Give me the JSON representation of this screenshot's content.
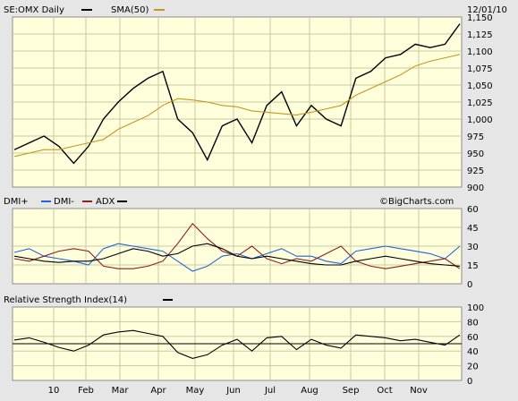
{
  "header": {
    "symbol": "SE:OMX Daily",
    "sma_label": "SMA(50)",
    "date": "12/01/10"
  },
  "watermark": "©BigCharts.com",
  "colors": {
    "panel_bg": "#ffffdc",
    "grid": "#c8c8a0",
    "frame_bg": "#e6e6e6",
    "price": "#000000",
    "sma": "#c8961e",
    "dmi_plus": "#1e64dc",
    "dmi_minus": "#8c1e1e",
    "adx": "#000000",
    "rsi": "#000000"
  },
  "x_axis": {
    "labels": [
      "10",
      "Feb",
      "Mar",
      "Apr",
      "May",
      "Jun",
      "Jul",
      "Aug",
      "Sep",
      "Oct",
      "Nov"
    ]
  },
  "chart_data": [
    {
      "type": "line",
      "title": "SE:OMX Daily",
      "ylim": [
        900,
        1150
      ],
      "y_ticks": [
        "1,150",
        "1,125",
        "1,100",
        "1,075",
        "1,050",
        "1,025",
        "1,000",
        "975",
        "950",
        "925",
        "900"
      ],
      "grid": true,
      "x": [
        "2010-01-04",
        "2010-01-15",
        "2010-01-27",
        "2010-02-08",
        "2010-02-19",
        "2010-03-03",
        "2010-03-15",
        "2010-03-26",
        "2010-04-07",
        "2010-04-19",
        "2010-04-30",
        "2010-05-07",
        "2010-05-14",
        "2010-05-21",
        "2010-06-02",
        "2010-06-14",
        "2010-06-25",
        "2010-07-07",
        "2010-07-19",
        "2010-07-30",
        "2010-08-11",
        "2010-08-23",
        "2010-09-03",
        "2010-09-15",
        "2010-09-27",
        "2010-10-08",
        "2010-10-20",
        "2010-11-01",
        "2010-11-12",
        "2010-11-24",
        "2010-12-01"
      ],
      "series": [
        {
          "name": "SE:OMX Daily",
          "values": [
            955,
            965,
            975,
            960,
            935,
            960,
            1000,
            1025,
            1045,
            1060,
            1070,
            1000,
            980,
            940,
            990,
            1000,
            965,
            1020,
            1040,
            990,
            1020,
            1000,
            990,
            1060,
            1070,
            1090,
            1095,
            1110,
            1105,
            1110,
            1140
          ]
        },
        {
          "name": "SMA(50)",
          "values": [
            945,
            950,
            955,
            955,
            960,
            965,
            970,
            985,
            995,
            1005,
            1020,
            1030,
            1028,
            1025,
            1020,
            1018,
            1012,
            1010,
            1008,
            1006,
            1010,
            1015,
            1020,
            1035,
            1045,
            1055,
            1065,
            1078,
            1085,
            1090,
            1095
          ]
        }
      ]
    },
    {
      "type": "line",
      "title": "DMI+ DMI- ADX",
      "ylim": [
        0,
        60
      ],
      "y_ticks": [
        "60",
        "45",
        "30",
        "15",
        "0"
      ],
      "grid": true,
      "series": [
        {
          "name": "DMI+",
          "values": [
            25,
            28,
            22,
            20,
            18,
            15,
            28,
            32,
            30,
            28,
            26,
            18,
            10,
            14,
            22,
            24,
            20,
            24,
            28,
            22,
            22,
            18,
            16,
            26,
            28,
            30,
            28,
            26,
            24,
            20,
            30
          ]
        },
        {
          "name": "DMI-",
          "values": [
            20,
            18,
            22,
            26,
            28,
            26,
            14,
            12,
            12,
            14,
            18,
            32,
            48,
            36,
            26,
            22,
            30,
            20,
            16,
            20,
            18,
            24,
            30,
            18,
            14,
            12,
            14,
            16,
            18,
            20,
            12
          ]
        },
        {
          "name": "ADX",
          "values": [
            22,
            20,
            18,
            17,
            18,
            18,
            20,
            24,
            28,
            26,
            22,
            24,
            30,
            32,
            28,
            22,
            20,
            22,
            20,
            18,
            16,
            15,
            15,
            18,
            20,
            22,
            20,
            18,
            16,
            15,
            14
          ]
        }
      ]
    },
    {
      "type": "line",
      "title": "Relative Strength Index(14)",
      "ylim": [
        0,
        100
      ],
      "y_ticks": [
        "100",
        "80",
        "60",
        "40",
        "20",
        "0"
      ],
      "grid": true,
      "series": [
        {
          "name": "RSI(14)",
          "values": [
            55,
            58,
            52,
            45,
            40,
            48,
            62,
            66,
            68,
            64,
            60,
            38,
            30,
            35,
            48,
            56,
            40,
            58,
            60,
            42,
            56,
            48,
            44,
            62,
            60,
            58,
            54,
            56,
            52,
            48,
            62
          ]
        }
      ]
    }
  ]
}
